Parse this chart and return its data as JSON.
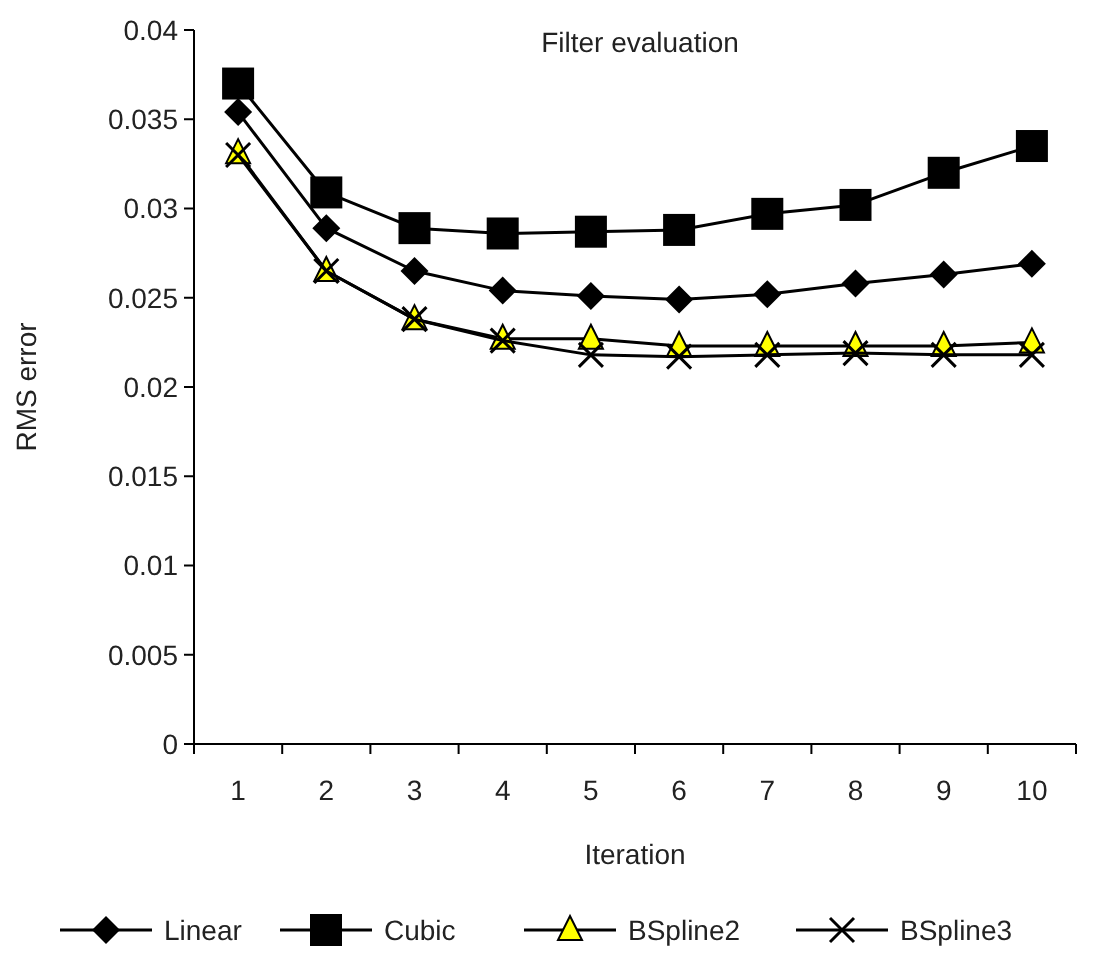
{
  "chart_data": {
    "type": "line",
    "title": "Filter evaluation",
    "xlabel": "Iteration",
    "ylabel": "RMS error",
    "categories": [
      "1",
      "2",
      "3",
      "4",
      "5",
      "6",
      "7",
      "8",
      "9",
      "10"
    ],
    "ylim": [
      0,
      0.04
    ],
    "yticks": [
      0,
      0.005,
      0.01,
      0.015,
      0.02,
      0.025,
      0.03,
      0.035,
      0.04
    ],
    "grid": false,
    "legend": "bottom",
    "series": [
      {
        "name": "Linear",
        "color": "#000000",
        "marker": "diamond",
        "values": [
          0.0354,
          0.0289,
          0.0265,
          0.0254,
          0.0251,
          0.0249,
          0.0252,
          0.0258,
          0.0263,
          0.0269
        ]
      },
      {
        "name": "Cubic",
        "color": "#000000",
        "marker": "square",
        "values": [
          0.037,
          0.0309,
          0.0289,
          0.0286,
          0.0287,
          0.0288,
          0.0297,
          0.0302,
          0.032,
          0.0335
        ]
      },
      {
        "name": "BSpline2",
        "color": "#ffff00",
        "marker": "triangle",
        "values": [
          0.0331,
          0.0265,
          0.0238,
          0.0227,
          0.0227,
          0.0223,
          0.0223,
          0.0223,
          0.0223,
          0.0225
        ]
      },
      {
        "name": "BSpline3",
        "color": "#000000",
        "marker": "cross",
        "values": [
          0.033,
          0.0265,
          0.0238,
          0.0226,
          0.0218,
          0.0217,
          0.0218,
          0.0219,
          0.0218,
          0.0218
        ]
      }
    ]
  }
}
